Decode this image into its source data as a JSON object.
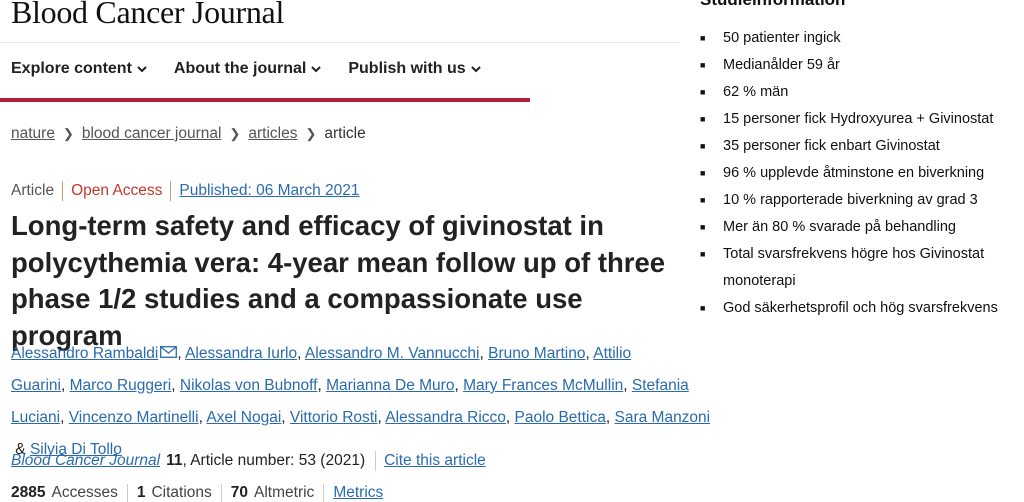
{
  "journal": {
    "name": "Blood Cancer Journal"
  },
  "nav": [
    {
      "label": "Explore content"
    },
    {
      "label": "About the journal"
    },
    {
      "label": "Publish with us"
    }
  ],
  "breadcrumb": [
    "nature",
    "blood cancer journal",
    "articles",
    "article"
  ],
  "article": {
    "type": "Article",
    "access": "Open Access",
    "published": "Published: 06 March 2021",
    "title": "Long-term safety and efficacy of givinostat in polycythemia vera: 4-year mean follow up of three phase 1/2 studies and a compassionate use program",
    "authors": [
      "Alessandro Rambaldi",
      "Alessandra Iurlo",
      "Alessandro M. Vannucchi",
      "Bruno Martino",
      "Attilio Guarini",
      "Marco Ruggeri",
      "Nikolas von Bubnoff",
      "Marianna De Muro",
      "Mary Frances McMullin",
      "Stefania Luciani",
      "Vincenzo Martinelli",
      "Axel Nogai",
      "Vittorio Rosti",
      "Alessandra Ricco",
      "Paolo Bettica",
      "Sara Manzoni",
      "Silvia Di Tollo"
    ],
    "author_joiner": ", ",
    "author_last_joiner": " & ",
    "citation": {
      "journal": "Blood Cancer Journal",
      "volume": "11",
      "rest": ", Article number: 53 (2021)",
      "cite_label": "Cite this article"
    },
    "metrics": [
      {
        "value": "2885",
        "label": "Accesses"
      },
      {
        "value": "1",
        "label": "Citations"
      },
      {
        "value": "70",
        "label": "Altmetric"
      }
    ],
    "metrics_link": "Metrics"
  },
  "side_panel": {
    "title": "Studieinformation",
    "items": [
      "50 patienter ingick",
      "Medianålder 59 år",
      "62 % män",
      "15 personer fick Hydroxyurea + Givinostat",
      "35 personer fick enbart Givinostat",
      "96 % upplevde åtminstone en biverkning",
      "10 % rapporterade biverkning av grad 3",
      "Mer än 80 % svarade på behandling",
      "Total svarsfrekvens högre hos Givinostat monoterapi",
      "God säkerhetsprofil och hög svarsfrekvens"
    ]
  },
  "colors": {
    "accent": "#b0203a",
    "link": "#2a6bb0",
    "open_access": "#c0392b"
  }
}
